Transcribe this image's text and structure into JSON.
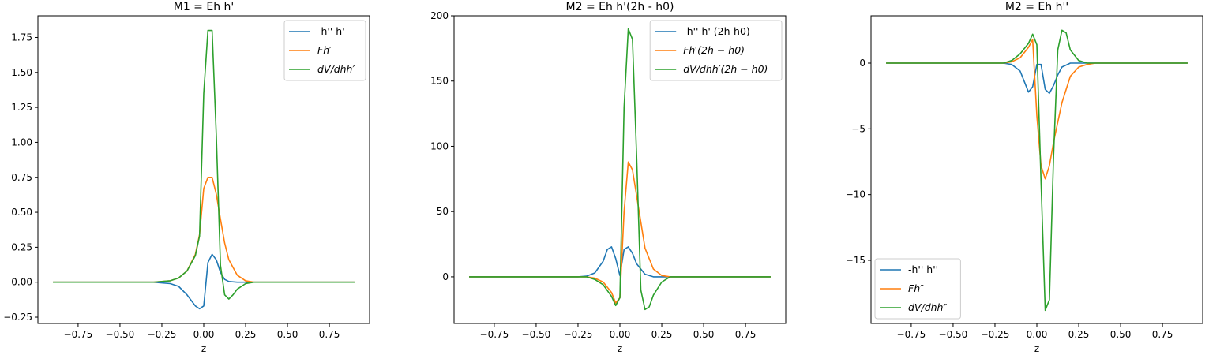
{
  "colors": {
    "c1": "#1f77b4",
    "c2": "#ff7f0e",
    "c3": "#2ca02c"
  },
  "chart_data": [
    {
      "type": "line",
      "title": "M1 = Eh h'",
      "xlabel": "z",
      "ylabel": "",
      "xlim": [
        -0.99,
        0.99
      ],
      "ylim": [
        -0.295,
        1.905
      ],
      "xticks": [
        -0.75,
        -0.5,
        -0.25,
        0.0,
        0.25,
        0.5,
        0.75
      ],
      "xticklabels": [
        "−0.75",
        "−0.50",
        "−0.25",
        "0.00",
        "0.25",
        "0.50",
        "0.75"
      ],
      "yticks": [
        -0.25,
        0.0,
        0.25,
        0.5,
        0.75,
        1.0,
        1.25,
        1.5,
        1.75
      ],
      "yticklabels": [
        "−0.25",
        "0.00",
        "0.25",
        "0.50",
        "0.75",
        "1.00",
        "1.25",
        "1.50",
        "1.75"
      ],
      "legend": {
        "loc": "upper right"
      },
      "series": [
        {
          "name": "-h'' h'",
          "color": "#1f77b4",
          "x": [
            -0.9,
            -0.3,
            -0.2,
            -0.15,
            -0.1,
            -0.05,
            -0.025,
            0.0,
            0.025,
            0.05,
            0.075,
            0.1,
            0.125,
            0.15,
            0.2,
            0.3,
            0.9
          ],
          "y": [
            0,
            0,
            -0.01,
            -0.03,
            -0.09,
            -0.17,
            -0.19,
            -0.17,
            0.14,
            0.2,
            0.16,
            0.07,
            0.02,
            0.005,
            0,
            0,
            0
          ]
        },
        {
          "name": "Fh′",
          "color": "#ff7f0e",
          "x": [
            -0.9,
            -0.3,
            -0.2,
            -0.15,
            -0.1,
            -0.05,
            -0.025,
            0.0,
            0.025,
            0.05,
            0.075,
            0.1,
            0.125,
            0.15,
            0.2,
            0.25,
            0.3,
            0.9
          ],
          "y": [
            0,
            0,
            0.01,
            0.03,
            0.08,
            0.2,
            0.34,
            0.67,
            0.75,
            0.75,
            0.63,
            0.45,
            0.28,
            0.16,
            0.05,
            0.01,
            0,
            0
          ]
        },
        {
          "name": "dV/dhh′",
          "color": "#2ca02c",
          "x": [
            -0.9,
            -0.3,
            -0.2,
            -0.15,
            -0.1,
            -0.05,
            -0.025,
            0.0,
            0.025,
            0.05,
            0.075,
            0.1,
            0.125,
            0.15,
            0.175,
            0.2,
            0.25,
            0.3,
            0.9
          ],
          "y": [
            0,
            0,
            0.01,
            0.03,
            0.08,
            0.19,
            0.33,
            1.35,
            1.8,
            1.8,
            1.05,
            0.12,
            -0.09,
            -0.12,
            -0.09,
            -0.05,
            -0.01,
            0,
            0
          ]
        }
      ]
    },
    {
      "type": "line",
      "title": "M2 = Eh h'(2h - h0)",
      "xlabel": "z",
      "ylabel": "",
      "xlim": [
        -0.99,
        0.99
      ],
      "ylim": [
        -35.7,
        200
      ],
      "xticks": [
        -0.75,
        -0.5,
        -0.25,
        0.0,
        0.25,
        0.5,
        0.75
      ],
      "xticklabels": [
        "−0.75",
        "−0.50",
        "−0.25",
        "0.00",
        "0.25",
        "0.50",
        "0.75"
      ],
      "yticks": [
        0,
        50,
        100,
        150,
        200
      ],
      "yticklabels": [
        "0",
        "50",
        "100",
        "150",
        "200"
      ],
      "legend": {
        "loc": "upper right"
      },
      "series": [
        {
          "name": "-h'' h' (2h-h0)",
          "color": "#1f77b4",
          "x": [
            -0.9,
            -0.25,
            -0.2,
            -0.15,
            -0.1,
            -0.075,
            -0.05,
            -0.025,
            0.0,
            0.025,
            0.05,
            0.075,
            0.1,
            0.15,
            0.2,
            0.25,
            0.9
          ],
          "y": [
            0,
            0,
            0.5,
            3,
            12,
            21,
            23,
            14,
            1,
            21,
            23,
            18,
            10,
            2,
            0,
            0,
            0
          ]
        },
        {
          "name": "Fh′(2h − h0)",
          "color": "#ff7f0e",
          "x": [
            -0.9,
            -0.2,
            -0.15,
            -0.1,
            -0.05,
            -0.025,
            0.0,
            0.025,
            0.05,
            0.075,
            0.1,
            0.125,
            0.15,
            0.2,
            0.25,
            0.3,
            0.9
          ],
          "y": [
            0,
            0,
            -1,
            -4,
            -12,
            -20,
            -16,
            50,
            88,
            82,
            62,
            42,
            22,
            6,
            1,
            0,
            0
          ]
        },
        {
          "name": "dV/dhh′(2h − h0)",
          "color": "#2ca02c",
          "x": [
            -0.9,
            -0.2,
            -0.15,
            -0.1,
            -0.05,
            -0.025,
            0.0,
            0.025,
            0.05,
            0.075,
            0.1,
            0.125,
            0.15,
            0.175,
            0.2,
            0.25,
            0.3,
            0.9
          ],
          "y": [
            0,
            0,
            -2,
            -6,
            -15,
            -22,
            -16,
            130,
            190,
            182,
            92,
            -10,
            -25,
            -23,
            -14,
            -4,
            0,
            0
          ]
        }
      ]
    },
    {
      "type": "line",
      "title": "M2 = Eh h''",
      "xlabel": "z",
      "ylabel": "",
      "xlim": [
        -0.99,
        0.99
      ],
      "ylim": [
        -19.8,
        3.6
      ],
      "xticks": [
        -0.75,
        -0.5,
        -0.25,
        0.0,
        0.25,
        0.5,
        0.75
      ],
      "xticklabels": [
        "−0.75",
        "−0.50",
        "−0.25",
        "0.00",
        "0.25",
        "0.50",
        "0.75"
      ],
      "yticks": [
        -15,
        -10,
        -5,
        0
      ],
      "yticklabels": [
        "−15",
        "−10",
        "−5",
        "0"
      ],
      "legend": {
        "loc": "lower left"
      },
      "series": [
        {
          "name": "-h'' h''",
          "color": "#1f77b4",
          "x": [
            -0.9,
            -0.2,
            -0.15,
            -0.1,
            -0.075,
            -0.05,
            -0.025,
            0.0,
            0.025,
            0.05,
            0.075,
            0.1,
            0.125,
            0.15,
            0.2,
            0.3,
            0.9
          ],
          "y": [
            0,
            0,
            -0.1,
            -0.6,
            -1.4,
            -2.2,
            -1.8,
            -0.1,
            -0.1,
            -2.0,
            -2.3,
            -1.7,
            -0.9,
            -0.3,
            0,
            0,
            0
          ]
        },
        {
          "name": "Fh″",
          "color": "#ff7f0e",
          "x": [
            -0.9,
            -0.2,
            -0.15,
            -0.1,
            -0.05,
            -0.025,
            0.0,
            0.025,
            0.05,
            0.075,
            0.1,
            0.125,
            0.15,
            0.2,
            0.25,
            0.3,
            0.35,
            0.9
          ],
          "y": [
            0,
            0,
            0.1,
            0.4,
            1.2,
            1.8,
            -4,
            -7.8,
            -8.8,
            -7.8,
            -6,
            -4.5,
            -3,
            -1,
            -0.3,
            -0.1,
            0,
            0
          ]
        },
        {
          "name": "dV/dhh″",
          "color": "#2ca02c",
          "x": [
            -0.9,
            -0.2,
            -0.15,
            -0.1,
            -0.05,
            -0.025,
            0.0,
            0.025,
            0.05,
            0.075,
            0.1,
            0.125,
            0.15,
            0.175,
            0.2,
            0.25,
            0.3,
            0.9
          ],
          "y": [
            0,
            0,
            0.2,
            0.7,
            1.5,
            2.2,
            1.4,
            -9,
            -18.8,
            -18,
            -7,
            1,
            2.5,
            2.3,
            1,
            0.2,
            0,
            0
          ]
        }
      ]
    }
  ]
}
